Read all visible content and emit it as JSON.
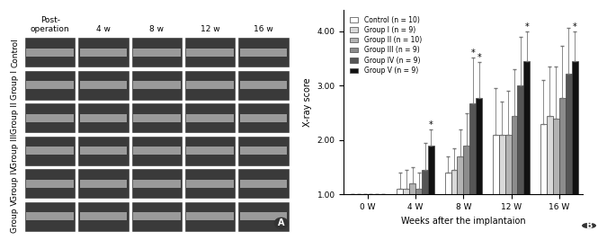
{
  "image_panel": {
    "panel_label": "A",
    "columns": [
      "Post-\noperation",
      "4 w",
      "8 w",
      "12 w",
      "16 w"
    ],
    "rows": [
      "Control",
      "Group I",
      "Group II",
      "Group III",
      "Group IV",
      "Group V"
    ]
  },
  "chart_data": {
    "type": "bar",
    "panel_label": "B",
    "x_label": "Weeks after the implantaion",
    "y_label": "X-ray score",
    "categories": [
      "0 W",
      "4 W",
      "8 W",
      "12 W",
      "16 W"
    ],
    "ylim": [
      1.0,
      4.4
    ],
    "yticks": [
      {
        "value": 1,
        "label": "1.00"
      },
      {
        "value": 2,
        "label": "2.00"
      },
      {
        "value": 3,
        "label": "3.00"
      },
      {
        "value": 4,
        "label": "4.00"
      }
    ],
    "grid": false,
    "legend": "upper left",
    "series": [
      {
        "name": "Control (n = 10)",
        "color": "#ffffff",
        "values": [
          1.0,
          1.1,
          1.4,
          2.1,
          2.3
        ],
        "errors": [
          0,
          0.3,
          0.3,
          0.85,
          0.8
        ]
      },
      {
        "name": "Group I (n = 9)",
        "color": "#d9d9d9",
        "values": [
          1.0,
          1.1,
          1.45,
          2.1,
          2.45
        ],
        "errors": [
          0,
          0.35,
          0.4,
          0.6,
          0.9
        ]
      },
      {
        "name": "Group II (n = 10)",
        "color": "#b3b3b3",
        "values": [
          1.0,
          1.2,
          1.7,
          2.1,
          2.4
        ],
        "errors": [
          0,
          0.3,
          0.5,
          0.8,
          0.95
        ]
      },
      {
        "name": "Group III (n = 9)",
        "color": "#8c8c8c",
        "values": [
          1.0,
          1.1,
          1.9,
          2.45,
          2.78
        ],
        "errors": [
          0,
          0.3,
          0.6,
          0.85,
          0.95
        ]
      },
      {
        "name": "Group IV (n = 9)",
        "color": "#555555",
        "values": [
          1.0,
          1.45,
          2.67,
          3.0,
          3.22
        ],
        "errors": [
          0,
          0.5,
          0.85,
          0.9,
          0.85
        ]
      },
      {
        "name": "Group V (n = 9)",
        "color": "#111111",
        "values": [
          1.0,
          1.9,
          2.78,
          3.45,
          3.45
        ],
        "errors": [
          0,
          0.3,
          0.65,
          0.55,
          0.55
        ]
      }
    ],
    "annotations": [
      {
        "category": "4 W",
        "series": "Group V (n = 9)",
        "text": "*"
      },
      {
        "category": "8 W",
        "series": "Group IV (n = 9)",
        "text": "*"
      },
      {
        "category": "8 W",
        "series": "Group V (n = 9)",
        "text": "*"
      },
      {
        "category": "12 W",
        "series": "Group V (n = 9)",
        "text": "*"
      },
      {
        "category": "16 W",
        "series": "Group V (n = 9)",
        "text": "*"
      }
    ]
  }
}
